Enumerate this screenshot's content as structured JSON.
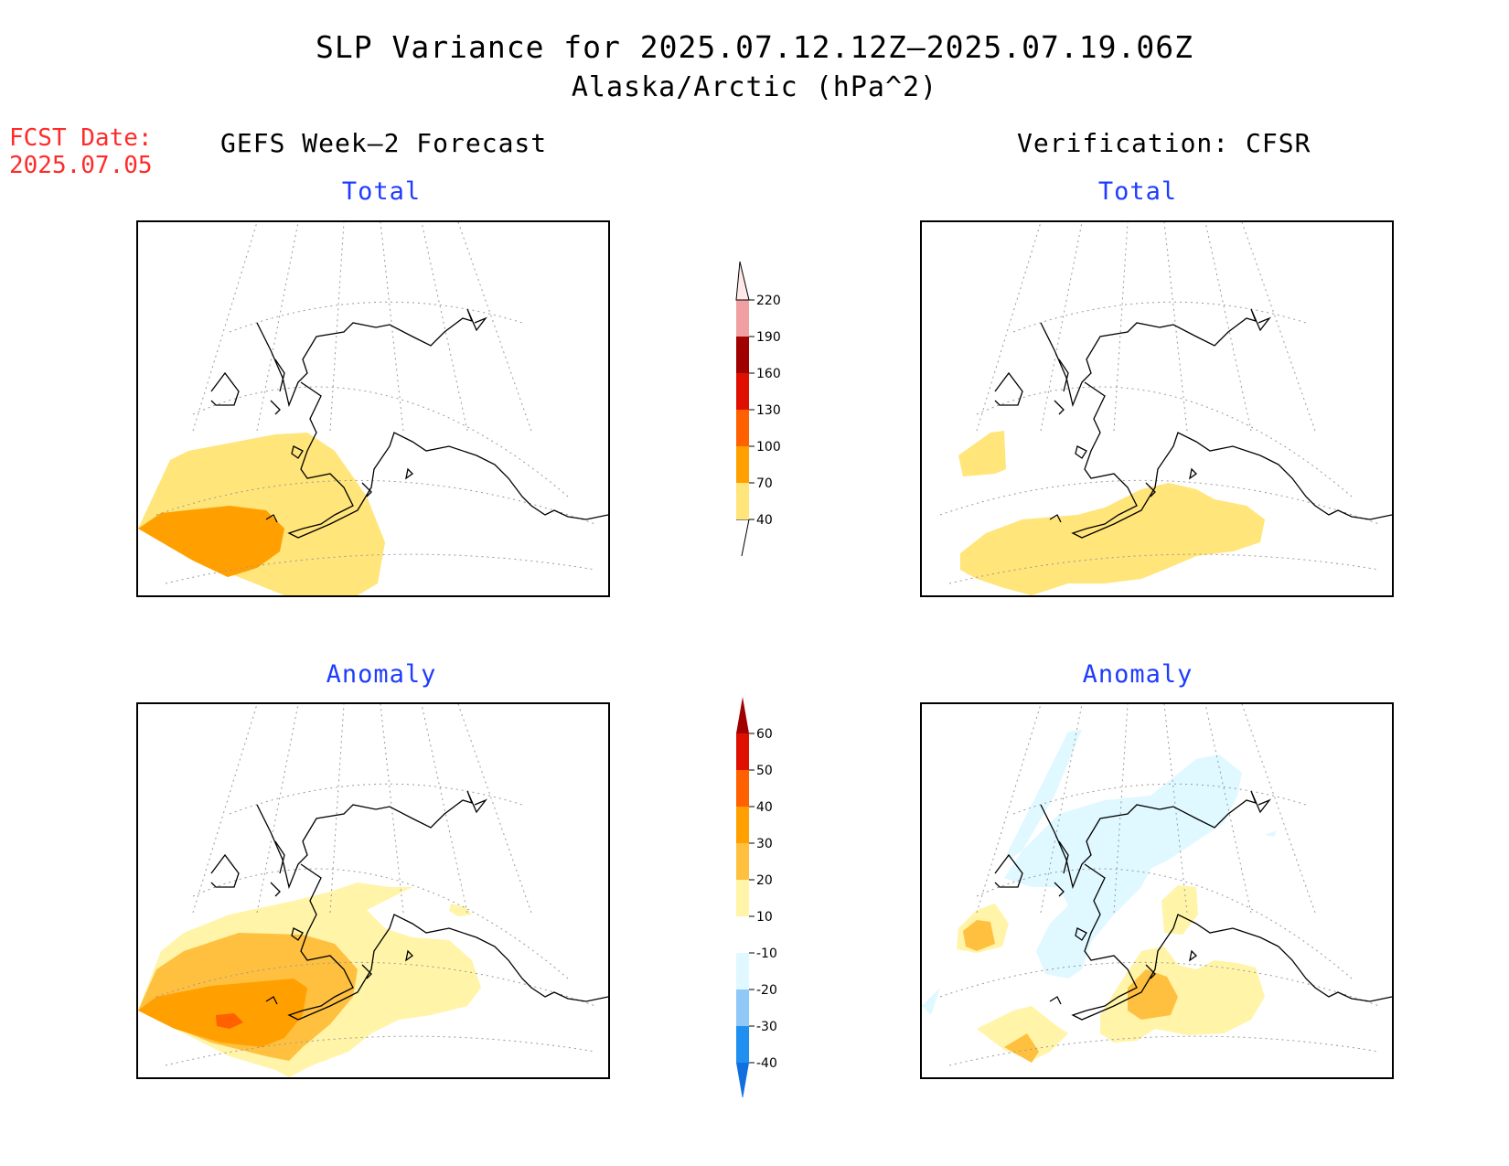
{
  "title": {
    "line1": "SLP Variance for 2025.07.12.12Z–2025.07.19.06Z",
    "line2": "Alaska/Arctic (hPa^2)"
  },
  "fcst_date": {
    "label": "FCST Date:",
    "value": "2025.07.05"
  },
  "columns": {
    "left": "GEFS Week–2 Forecast",
    "right": "Verification: CFSR"
  },
  "panels": {
    "top_left": "Total",
    "top_right": "Total",
    "bottom_left": "Anomaly",
    "bottom_right": "Anomaly"
  },
  "colorbar_total": {
    "labels": [
      "40",
      "70",
      "100",
      "130",
      "160",
      "190",
      "220"
    ],
    "colors": [
      "#ffe57a",
      "#ffa000",
      "#ff6000",
      "#e01000",
      "#a00000",
      "#f0a0a0",
      "#ffe8e8"
    ]
  },
  "colorbar_anomaly": {
    "labels": [
      "-40",
      "-30",
      "-20",
      "-10",
      "10",
      "20",
      "30",
      "40",
      "50",
      "60"
    ],
    "colors": [
      "#1070e0",
      "#2090f0",
      "#90c8f8",
      "#e0f8ff",
      "#ffffff",
      "#fff4a8",
      "#ffc040",
      "#ffa000",
      "#ff6000",
      "#e01000",
      "#a00000"
    ]
  }
}
